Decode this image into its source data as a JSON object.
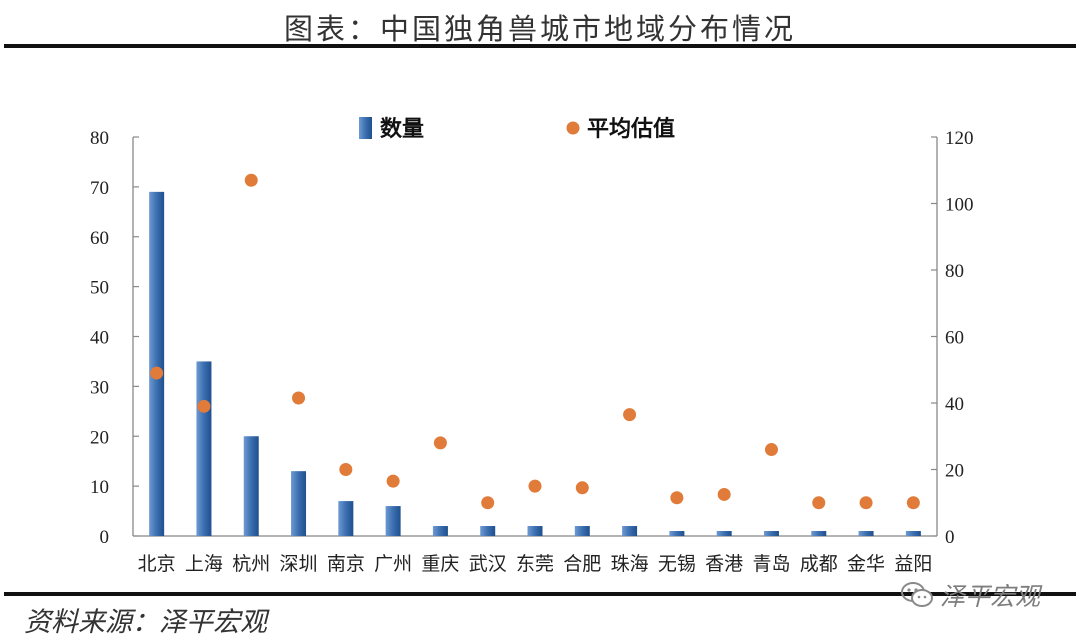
{
  "figure": {
    "title": "图表：中国独角兽城市地域分布情况",
    "source": "资料来源：泽平宏观",
    "watermark": "泽平宏观",
    "watermark_icon": "wechat-icon"
  },
  "chart_data": {
    "type": "bar",
    "categories": [
      "北京",
      "上海",
      "杭州",
      "深圳",
      "南京",
      "广州",
      "重庆",
      "武汉",
      "东莞",
      "合肥",
      "珠海",
      "无锡",
      "香港",
      "青岛",
      "成都",
      "金华",
      "益阳"
    ],
    "series": [
      {
        "name": "数量",
        "type": "bar",
        "axis": "left",
        "color": "#3b6fb0",
        "values": [
          69,
          35,
          20,
          13,
          7,
          6,
          2,
          2,
          2,
          2,
          2,
          1,
          1,
          1,
          1,
          1,
          1
        ]
      },
      {
        "name": "平均估值",
        "type": "scatter",
        "axis": "right",
        "color": "#e07b39",
        "values": [
          49,
          39,
          107,
          41.5,
          20,
          16.5,
          28,
          10,
          15,
          14.5,
          36.5,
          11.5,
          12.5,
          26,
          10,
          10,
          10
        ]
      }
    ],
    "y_left": {
      "min": 0,
      "max": 80,
      "ticks": [
        0,
        10,
        20,
        30,
        40,
        50,
        60,
        70,
        80
      ]
    },
    "y_right": {
      "min": 0,
      "max": 120,
      "ticks": [
        0,
        20,
        40,
        60,
        80,
        100,
        120
      ]
    },
    "legend": {
      "placement": "top-center"
    },
    "grid": false
  }
}
